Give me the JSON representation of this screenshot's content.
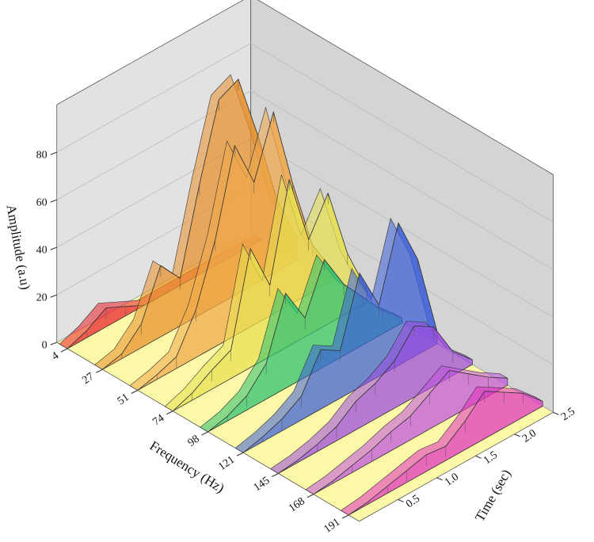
{
  "chart_data": {
    "type": "waterfall",
    "x_label": "Time (sec)",
    "y_label": "Frequency (Hz)",
    "z_label": "Amplitude (a.u)",
    "categories": [
      4,
      27,
      51,
      74,
      98,
      121,
      145,
      168,
      191
    ],
    "x": [
      0,
      0.25,
      0.5,
      0.75,
      1,
      1.25,
      1.5,
      1.75,
      2,
      2.25,
      2.5
    ],
    "xlim": [
      0,
      2.5
    ],
    "xticks": [
      0.5,
      {
        "value": 1,
        "label": "1.0"
      },
      1.5,
      {
        "value": 2,
        "label": "2.0"
      },
      2.5
    ],
    "zlim": [
      0,
      100
    ],
    "zticks": [
      0,
      20,
      40,
      60,
      80
    ],
    "grid": true,
    "series": [
      {
        "color": "#e8202a",
        "values": [
          0,
          3,
          8,
          4,
          0,
          0,
          0,
          0,
          0,
          0,
          0
        ]
      },
      {
        "color": "#e8902a",
        "values": [
          0,
          2,
          10,
          30,
          20,
          55,
          86,
          90,
          62,
          30,
          10
        ]
      },
      {
        "color": "#f0a848",
        "values": [
          0,
          2,
          5,
          20,
          45,
          80,
          60,
          85,
          50,
          20,
          5
        ]
      },
      {
        "color": "#e8e050",
        "values": [
          0,
          3,
          8,
          12,
          50,
          30,
          70,
          40,
          55,
          25,
          5
        ]
      },
      {
        "color": "#28c070",
        "values": [
          0,
          2,
          6,
          15,
          40,
          25,
          45,
          30,
          20,
          10,
          2
        ]
      },
      {
        "color": "#3a5ed8",
        "values": [
          0,
          2,
          5,
          10,
          25,
          20,
          48,
          30,
          60,
          40,
          5
        ]
      },
      {
        "color": "#9a48e0",
        "values": [
          0,
          1,
          3,
          6,
          12,
          15,
          20,
          30,
          25,
          10,
          2
        ]
      },
      {
        "color": "#c050e0",
        "values": [
          0,
          1,
          3,
          5,
          8,
          10,
          15,
          20,
          14,
          8,
          3
        ]
      },
      {
        "color": "#e030c0",
        "values": [
          0,
          1,
          3,
          5,
          7,
          6,
          12,
          20,
          15,
          10,
          2
        ]
      }
    ]
  }
}
